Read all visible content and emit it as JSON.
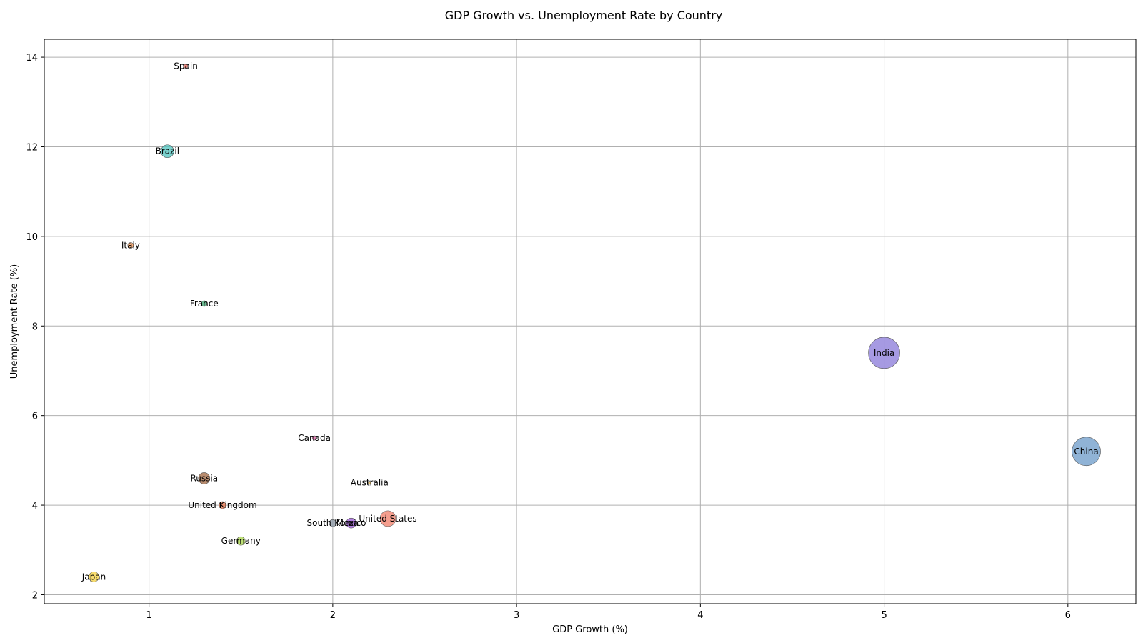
{
  "chart_data": {
    "type": "scatter",
    "title": "GDP Growth vs. Unemployment Rate by Country",
    "xlabel": "GDP Growth (%)",
    "ylabel": "Unemployment Rate (%)",
    "xlim": [
      0.43,
      6.37
    ],
    "ylim": [
      1.8,
      14.4
    ],
    "xticks": [
      1,
      2,
      3,
      4,
      5,
      6
    ],
    "yticks": [
      2,
      4,
      6,
      8,
      10,
      12,
      14
    ],
    "grid": true,
    "legend": "none",
    "points": [
      {
        "label": "Spain",
        "x": 1.2,
        "y": 13.8,
        "size": 3,
        "color": "#e8675a"
      },
      {
        "label": "Brazil",
        "x": 1.1,
        "y": 11.9,
        "size": 9,
        "color": "#4ec3bd"
      },
      {
        "label": "Italy",
        "x": 0.9,
        "y": 9.8,
        "size": 4,
        "color": "#f59a57"
      },
      {
        "label": "France",
        "x": 1.3,
        "y": 8.5,
        "size": 4,
        "color": "#3aa06b"
      },
      {
        "label": "India",
        "x": 5.0,
        "y": 7.4,
        "size": 22,
        "color": "#8878d8"
      },
      {
        "label": "China",
        "x": 6.1,
        "y": 5.2,
        "size": 20,
        "color": "#6b9ac8"
      },
      {
        "label": "Canada",
        "x": 1.9,
        "y": 5.5,
        "size": 3,
        "color": "#e25ca3"
      },
      {
        "label": "Russia",
        "x": 1.3,
        "y": 4.6,
        "size": 8,
        "color": "#a0653f"
      },
      {
        "label": "Australia",
        "x": 2.2,
        "y": 4.5,
        "size": 2,
        "color": "#e8b84a"
      },
      {
        "label": "United Kingdom",
        "x": 1.4,
        "y": 4.0,
        "size": 5,
        "color": "#e6734a"
      },
      {
        "label": "United States",
        "x": 2.3,
        "y": 3.7,
        "size": 11,
        "color": "#f27d68"
      },
      {
        "label": "South Korea",
        "x": 2.0,
        "y": 3.6,
        "size": 5,
        "color": "#8a95a3"
      },
      {
        "label": "Mexico",
        "x": 2.1,
        "y": 3.6,
        "size": 7,
        "color": "#9a55d6"
      },
      {
        "label": "Germany",
        "x": 1.5,
        "y": 3.2,
        "size": 6,
        "color": "#a8d64a"
      },
      {
        "label": "Japan",
        "x": 0.7,
        "y": 2.4,
        "size": 7,
        "color": "#f4d03f"
      }
    ]
  }
}
